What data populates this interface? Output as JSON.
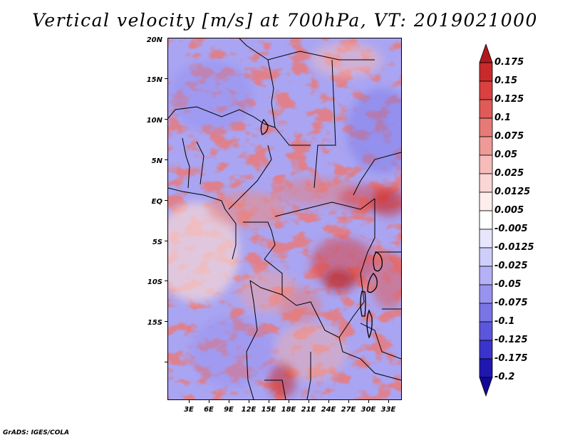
{
  "title": "Vertical velocity [m/s] at 700hPa, VT: 2019021000",
  "lat_labels": [
    "20N",
    "15N",
    "10N",
    "5N",
    "EQ",
    "5S",
    "10S",
    "15S"
  ],
  "lon_labels": [
    "3E",
    "6E",
    "9E",
    "12E",
    "15E",
    "18E",
    "21E",
    "24E",
    "27E",
    "30E",
    "33E"
  ],
  "colorbar": {
    "labels": [
      "0.175",
      "0.15",
      "0.125",
      "0.1",
      "0.075",
      "0.05",
      "0.025",
      "0.0125",
      "0.005",
      "-0.005",
      "-0.0125",
      "-0.025",
      "-0.05",
      "-0.075",
      "-0.1",
      "-0.125",
      "-0.175",
      "-0.2"
    ],
    "colors": [
      "#b0181c",
      "#c82a2c",
      "#d94040",
      "#e05a58",
      "#e77a76",
      "#ee9a96",
      "#f5bcb9",
      "#fad6d4",
      "#fdeeec",
      "#ffffff",
      "#e8e6fc",
      "#cfcdfa",
      "#b4b1f6",
      "#9893ef",
      "#7a75e6",
      "#5c56dc",
      "#3a33cc",
      "#1f17b0",
      "#120a95"
    ]
  },
  "credit": "GrADS: IGES/COLA"
}
